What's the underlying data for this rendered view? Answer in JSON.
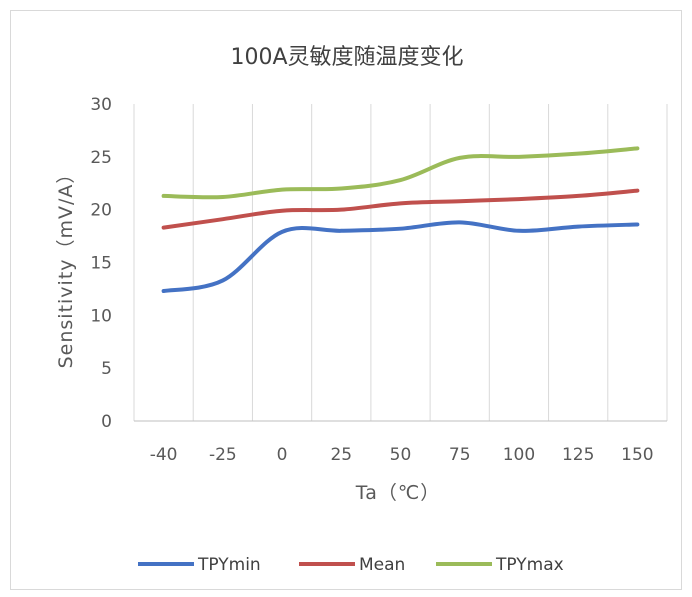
{
  "chart_data": {
    "type": "line",
    "title": "100A灵敏度随温度变化",
    "xlabel": "Ta（℃）",
    "ylabel": "Sensitivity（mV/A）",
    "categories": [
      "-40",
      "-25",
      "0",
      "25",
      "50",
      "75",
      "100",
      "125",
      "150"
    ],
    "ylim": [
      0,
      30
    ],
    "yticks": [
      0,
      5,
      10,
      15,
      20,
      25,
      30
    ],
    "grid": "vertical",
    "legend_position": "bottom",
    "series": [
      {
        "name": "TPYmin",
        "color": "#4472c4",
        "values": [
          12.3,
          13.3,
          17.9,
          18.0,
          18.2,
          18.8,
          18.0,
          18.4,
          18.6
        ]
      },
      {
        "name": "Mean",
        "color": "#c0504d",
        "values": [
          18.3,
          19.1,
          19.9,
          20.0,
          20.6,
          20.8,
          21.0,
          21.3,
          21.8
        ]
      },
      {
        "name": "TPYmax",
        "color": "#9bbb59",
        "values": [
          21.3,
          21.2,
          21.9,
          22.0,
          22.8,
          24.9,
          25.0,
          25.3,
          25.8
        ]
      }
    ]
  }
}
